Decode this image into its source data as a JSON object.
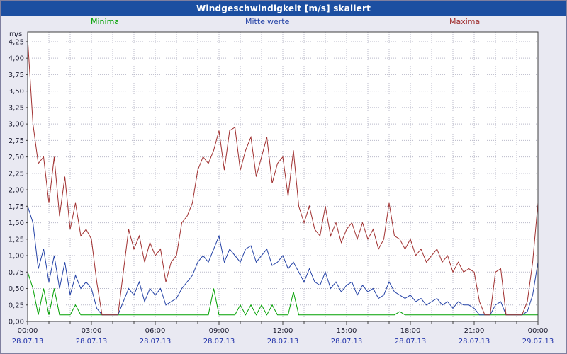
{
  "header": {
    "title": "Windgeschwindigkeit [m/s] skaliert"
  },
  "chart_data": {
    "type": "line",
    "title": "Windgeschwindigkeit [m/s] skaliert",
    "ylabel": "m/s",
    "ylim": [
      0,
      4.4
    ],
    "y_tick_step": 0.25,
    "y_tick_labels": [
      "0,00",
      "0,25",
      "0,50",
      "0,75",
      "1,00",
      "1,25",
      "1,50",
      "1,75",
      "2,00",
      "2,25",
      "2,50",
      "2,75",
      "3,00",
      "3,25",
      "3,50",
      "3,75",
      "4,00",
      "4,25"
    ],
    "x_hours_start": 0,
    "x_hours_end": 24,
    "x_tick_interval_hours": 3,
    "x_ticks": [
      {
        "time": "00:00",
        "date": "28.07.13"
      },
      {
        "time": "03:00",
        "date": "28.07.13"
      },
      {
        "time": "06:00",
        "date": "28.07.13"
      },
      {
        "time": "09:00",
        "date": "28.07.13"
      },
      {
        "time": "12:00",
        "date": "28.07.13"
      },
      {
        "time": "15:00",
        "date": "28.07.13"
      },
      {
        "time": "18:00",
        "date": "28.07.13"
      },
      {
        "time": "21:00",
        "date": "28.07.13"
      },
      {
        "time": "00:00",
        "date": "29.07.13"
      }
    ],
    "grid": "dotted",
    "legend_position": "top",
    "series": [
      {
        "name": "Minima",
        "color": "#00a000",
        "values": [
          0.75,
          0.5,
          0.1,
          0.5,
          0.1,
          0.5,
          0.1,
          0.1,
          0.1,
          0.25,
          0.1,
          0.1,
          0.1,
          0.1,
          0.1,
          0.1,
          0.1,
          0.1,
          0.1,
          0.1,
          0.1,
          0.1,
          0.1,
          0.1,
          0.1,
          0.1,
          0.1,
          0.1,
          0.1,
          0.1,
          0.1,
          0.1,
          0.1,
          0.1,
          0.1,
          0.5,
          0.1,
          0.1,
          0.1,
          0.1,
          0.25,
          0.1,
          0.25,
          0.1,
          0.25,
          0.1,
          0.25,
          0.1,
          0.1,
          0.1,
          0.45,
          0.1,
          0.1,
          0.1,
          0.1,
          0.1,
          0.1,
          0.1,
          0.1,
          0.1,
          0.1,
          0.1,
          0.1,
          0.1,
          0.1,
          0.1,
          0.1,
          0.1,
          0.1,
          0.1,
          0.15,
          0.1,
          0.1,
          0.1,
          0.1,
          0.1,
          0.1,
          0.1,
          0.1,
          0.1,
          0.1,
          0.1,
          0.1,
          0.1,
          0.1,
          0.1,
          0.1,
          0.1,
          0.1,
          0.1,
          0.1,
          0.1,
          0.1,
          0.1,
          0.1,
          0.1,
          0.1
        ]
      },
      {
        "name": "Mittelwerte",
        "color": "#2442a6",
        "values": [
          1.75,
          1.5,
          0.8,
          1.1,
          0.6,
          1.0,
          0.5,
          0.9,
          0.4,
          0.7,
          0.5,
          0.6,
          0.5,
          0.2,
          0.1,
          0.1,
          0.1,
          0.1,
          0.3,
          0.5,
          0.4,
          0.6,
          0.3,
          0.5,
          0.4,
          0.5,
          0.25,
          0.3,
          0.35,
          0.5,
          0.6,
          0.7,
          0.9,
          1.0,
          0.9,
          1.1,
          1.3,
          0.9,
          1.1,
          1.0,
          0.9,
          1.1,
          1.15,
          0.9,
          1.0,
          1.1,
          0.85,
          0.9,
          1.0,
          0.8,
          0.9,
          0.75,
          0.6,
          0.8,
          0.6,
          0.55,
          0.75,
          0.5,
          0.6,
          0.45,
          0.55,
          0.6,
          0.4,
          0.55,
          0.45,
          0.5,
          0.35,
          0.4,
          0.6,
          0.45,
          0.4,
          0.35,
          0.4,
          0.3,
          0.35,
          0.25,
          0.3,
          0.35,
          0.25,
          0.3,
          0.2,
          0.3,
          0.25,
          0.25,
          0.2,
          0.1,
          0.1,
          0.1,
          0.25,
          0.3,
          0.1,
          0.1,
          0.1,
          0.1,
          0.15,
          0.4,
          0.9
        ]
      },
      {
        "name": "Maxima",
        "color": "#a03030",
        "values": [
          4.3,
          3.0,
          2.4,
          2.5,
          1.8,
          2.5,
          1.6,
          2.2,
          1.4,
          1.8,
          1.3,
          1.4,
          1.25,
          0.6,
          0.1,
          0.1,
          0.1,
          0.1,
          0.75,
          1.4,
          1.1,
          1.3,
          0.9,
          1.2,
          1.0,
          1.1,
          0.6,
          0.9,
          1.0,
          1.5,
          1.6,
          1.8,
          2.3,
          2.5,
          2.4,
          2.6,
          2.9,
          2.3,
          2.9,
          2.95,
          2.3,
          2.6,
          2.8,
          2.2,
          2.5,
          2.8,
          2.1,
          2.4,
          2.5,
          1.9,
          2.6,
          1.75,
          1.5,
          1.75,
          1.4,
          1.3,
          1.75,
          1.3,
          1.5,
          1.2,
          1.4,
          1.5,
          1.25,
          1.5,
          1.25,
          1.4,
          1.1,
          1.25,
          1.8,
          1.3,
          1.25,
          1.1,
          1.25,
          1.0,
          1.1,
          0.9,
          1.0,
          1.1,
          0.9,
          1.0,
          0.75,
          0.9,
          0.75,
          0.8,
          0.75,
          0.3,
          0.1,
          0.1,
          0.75,
          0.8,
          0.1,
          0.1,
          0.1,
          0.1,
          0.3,
          0.9,
          1.8
        ]
      }
    ]
  },
  "colors": {
    "titlebar": "#1c4fa1",
    "background": "#e9e9f2",
    "plot_background": "#ffffff",
    "grid": "#b9b9c9",
    "axis": "#404040"
  }
}
